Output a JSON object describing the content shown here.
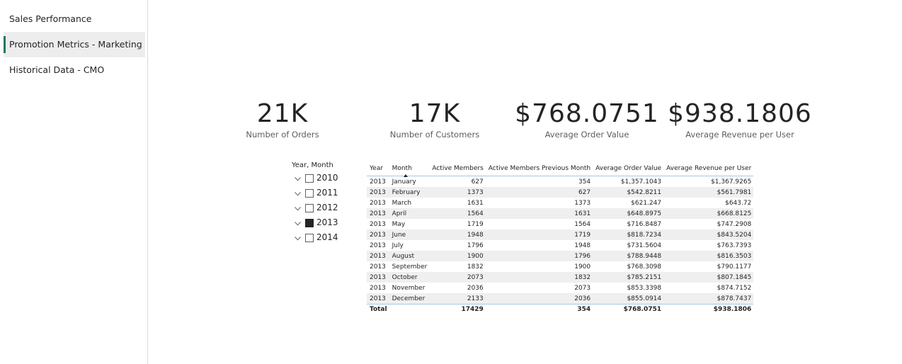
{
  "nav": {
    "items": [
      {
        "label": "Sales Performance",
        "active": false
      },
      {
        "label": "Promotion Metrics - Marketing",
        "active": true
      },
      {
        "label": "Historical Data - CMO",
        "active": false
      }
    ]
  },
  "kpis": [
    {
      "value": "21K",
      "label": "Number of Orders"
    },
    {
      "value": "17K",
      "label": "Number of Customers"
    },
    {
      "value": "$768.0751",
      "label": "Average Order Value"
    },
    {
      "value": "$938.1806",
      "label": "Average Revenue per User"
    }
  ],
  "slicer": {
    "title": "Year, Month",
    "items": [
      {
        "label": "2010",
        "checked": false
      },
      {
        "label": "2011",
        "checked": false
      },
      {
        "label": "2012",
        "checked": false
      },
      {
        "label": "2013",
        "checked": true
      },
      {
        "label": "2014",
        "checked": false
      }
    ]
  },
  "table": {
    "headers": [
      "Year",
      "Month",
      "Active Members",
      "Active Members Previous Month",
      "Average Order Value",
      "Average Revenue per User"
    ],
    "rows": [
      [
        "2013",
        "January",
        "627",
        "354",
        "$1,357.1043",
        "$1,367.9265"
      ],
      [
        "2013",
        "February",
        "1373",
        "627",
        "$542.8211",
        "$561.7981"
      ],
      [
        "2013",
        "March",
        "1631",
        "1373",
        "$621.247",
        "$643.72"
      ],
      [
        "2013",
        "April",
        "1564",
        "1631",
        "$648.8975",
        "$668.8125"
      ],
      [
        "2013",
        "May",
        "1719",
        "1564",
        "$716.8487",
        "$747.2908"
      ],
      [
        "2013",
        "June",
        "1948",
        "1719",
        "$818.7234",
        "$843.5204"
      ],
      [
        "2013",
        "July",
        "1796",
        "1948",
        "$731.5604",
        "$763.7393"
      ],
      [
        "2013",
        "August",
        "1900",
        "1796",
        "$788.9448",
        "$816.3503"
      ],
      [
        "2013",
        "September",
        "1832",
        "1900",
        "$768.3098",
        "$790.1177"
      ],
      [
        "2013",
        "October",
        "2073",
        "1832",
        "$785.2151",
        "$807.1845"
      ],
      [
        "2013",
        "November",
        "2036",
        "2073",
        "$853.3398",
        "$874.7152"
      ],
      [
        "2013",
        "December",
        "2133",
        "2036",
        "$855.0914",
        "$878.7437"
      ]
    ],
    "total": [
      "Total",
      "",
      "17429",
      "354",
      "$768.0751",
      "$938.1806"
    ]
  },
  "colors": {
    "accent": "#117865",
    "nav_active_bg": "#ededed",
    "header_rule": "#a9c8e5",
    "zebra": "#efefef"
  },
  "icons": {
    "slicer_expand": "chevron-down-icon",
    "sort": "sort-ascending-icon"
  }
}
